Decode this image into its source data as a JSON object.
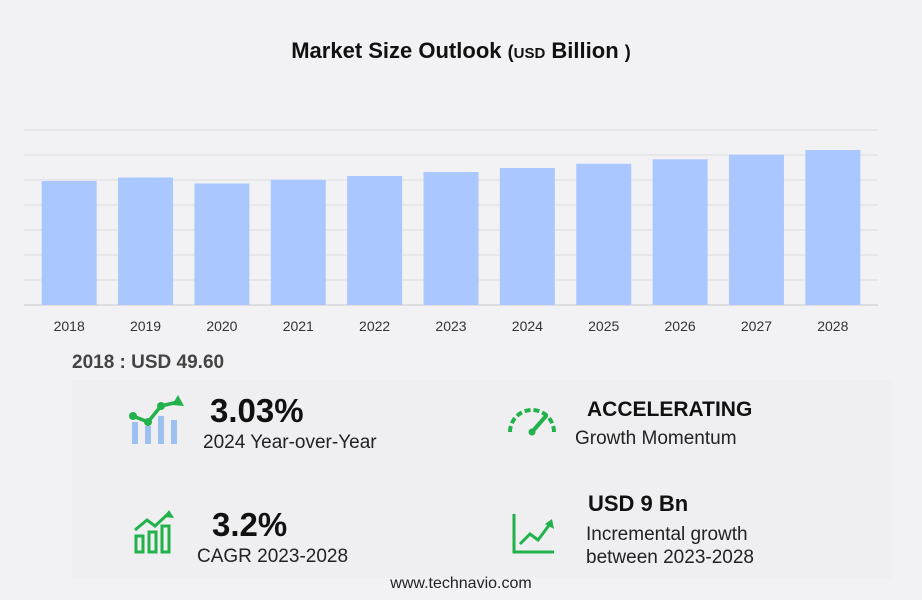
{
  "title": {
    "main": "Market Size Outlook",
    "unit_open": "(",
    "unit_usd": "USD",
    "unit_word": "Billion",
    "unit_close": ")"
  },
  "chart_data": {
    "type": "bar",
    "categories": [
      "2018",
      "2019",
      "2020",
      "2021",
      "2022",
      "2023",
      "2024",
      "2025",
      "2026",
      "2027",
      "2028"
    ],
    "values": [
      49.6,
      51.0,
      48.6,
      50.1,
      51.6,
      53.2,
      54.8,
      56.5,
      58.3,
      60.1,
      62.0
    ],
    "ylim": [
      0,
      70
    ],
    "grid": true,
    "bar_color": "#aac8ff",
    "title": "Market Size Outlook",
    "ylabel": "",
    "xlabel": ""
  },
  "base_value": "2018 : USD  49.60",
  "stats": {
    "yoy_value": "3.03%",
    "yoy_label": "2024 Year-over-Year",
    "momentum_value": "ACCELERATING",
    "momentum_label": "Growth Momentum",
    "cagr_value": "3.2%",
    "cagr_label": "CAGR 2023-2028",
    "incr_value": "USD 9 Bn",
    "incr_label_1": "Incremental growth",
    "incr_label_2": "between 2023-2028"
  },
  "icons": {
    "yoy": "trend-chart-icon",
    "momentum": "speedometer-icon",
    "cagr": "bar-growth-icon",
    "incremental": "line-growth-icon"
  },
  "accent_color": "#22b24c",
  "footer": "www.technavio.com"
}
